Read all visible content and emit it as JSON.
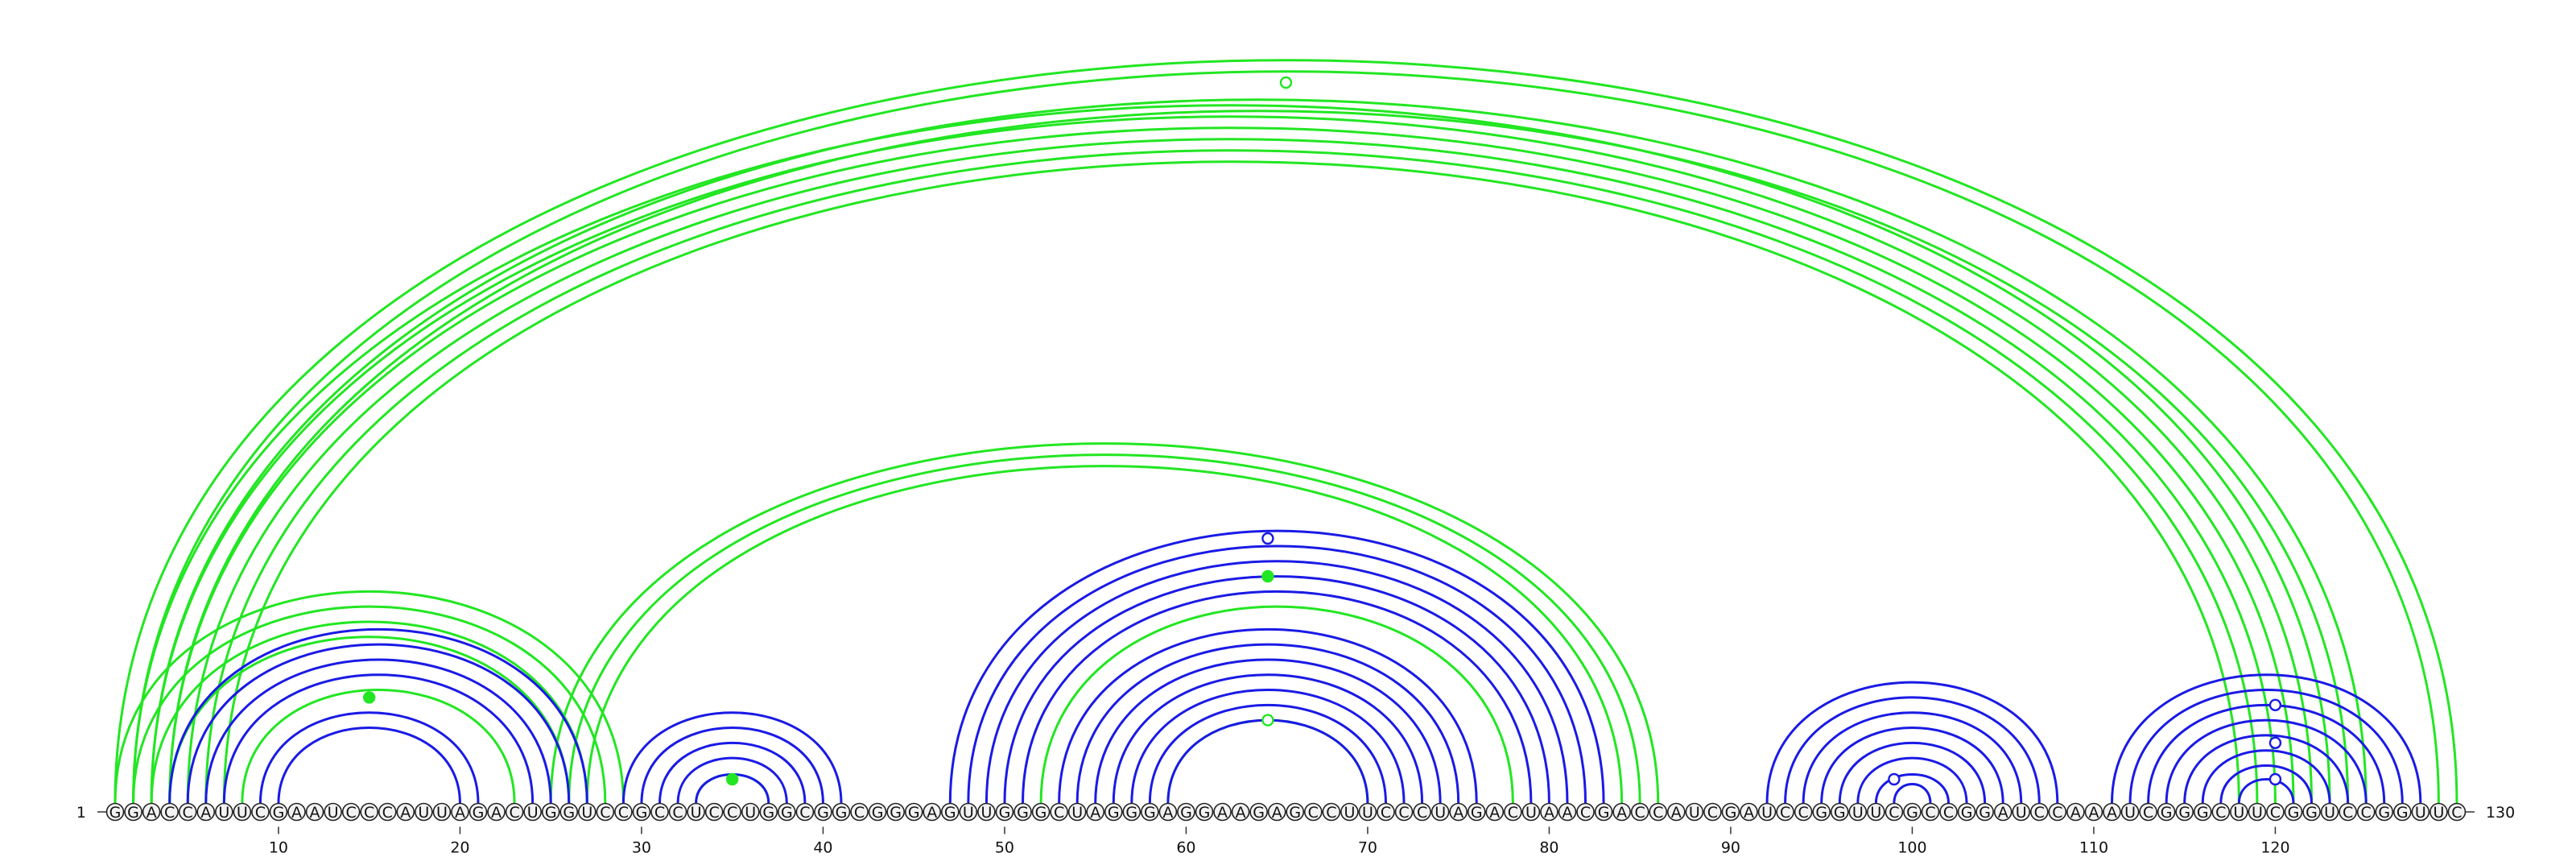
{
  "diagram": {
    "start_label": "1",
    "end_label": "130",
    "sequence": "GGACCAUUCGAAUCCCAUUAGACUGGUCCGCCUCCUGGCGGCGGGAGUUGGGCUAGGGAGGAAGAGCCUUCCCUAGACUAACGACCAUCGAUCCGGUUCGCCGGAUCCAAAUCGGGCUUCGGUCCGGUUC",
    "tick_positions": [
      10,
      20,
      30,
      40,
      50,
      60,
      70,
      80,
      90,
      100,
      110,
      120
    ],
    "colors": {
      "blue": "#1a1ae6",
      "green": "#22e622"
    },
    "blue_helices": [
      {
        "i": 4,
        "j": 27,
        "n": 4
      },
      {
        "i": 9,
        "j": 21,
        "n": 2
      },
      {
        "i": 29,
        "j": 41,
        "n": 5
      },
      {
        "i": 47,
        "j": 83,
        "n": 5
      },
      {
        "i": 53,
        "j": 76,
        "n": 7
      },
      {
        "i": 92,
        "j": 108,
        "n": 8
      },
      {
        "i": 111,
        "j": 128,
        "n": 8
      }
    ],
    "green_helices": [
      {
        "i": 1,
        "j": 130,
        "n": 2
      },
      {
        "i": 2,
        "j": 123,
        "n": 6
      },
      {
        "i": 3,
        "j": 125,
        "n": 2
      },
      {
        "i": 1,
        "j": 29,
        "n": 4
      },
      {
        "i": 25,
        "j": 86,
        "n": 3
      },
      {
        "i": 8,
        "j": 23,
        "n": 1
      },
      {
        "i": 52,
        "j": 78,
        "n": 1
      },
      {
        "i": 59,
        "j": 70,
        "n": 1
      },
      {
        "i": 33,
        "j": 37,
        "n": 1
      }
    ],
    "markers": [
      {
        "pos": 65.5,
        "arc": 125,
        "color": "green",
        "filled": false
      },
      {
        "pos": 15,
        "arc": 14,
        "color": "green",
        "filled": true
      },
      {
        "pos": 35,
        "arc": 3,
        "color": "green",
        "filled": true
      },
      {
        "pos": 64.5,
        "arc": 35,
        "color": "blue",
        "filled": false
      },
      {
        "pos": 64.5,
        "arc": 30,
        "color": "green",
        "filled": true
      },
      {
        "pos": 64.5,
        "arc": 11,
        "color": "green",
        "filled": false
      },
      {
        "pos": 99,
        "arc": 3,
        "color": "blue",
        "filled": false
      },
      {
        "pos": 120,
        "arc": 13,
        "color": "blue",
        "filled": false
      },
      {
        "pos": 120,
        "arc": 8,
        "color": "blue",
        "filled": false
      },
      {
        "pos": 120,
        "arc": 3,
        "color": "blue",
        "filled": false
      }
    ]
  }
}
